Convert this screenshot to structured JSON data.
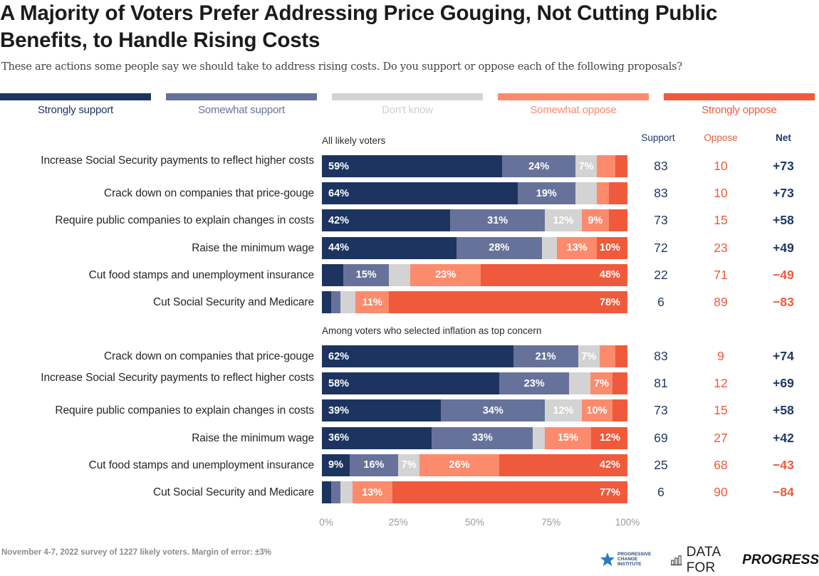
{
  "header": {
    "title_line1": "A Majority of Voters Prefer Addressing Price Gouging, Not Cutting Public",
    "title_line2": "Benefits, to Handle Rising Costs",
    "subtitle": "These are actions some people say we should take to address rising costs. Do you support or oppose each of the following proposals?"
  },
  "colors": {
    "strongly_support": "#1d3461",
    "somewhat_support": "#67729a",
    "dont_know": "#d3d3d3",
    "somewhat_oppose": "#fc8b6e",
    "strongly_oppose": "#ef5a3c",
    "support_text": "#1f3864",
    "oppose_text": "#ef5a3c",
    "dont_know_label": "#cfcfcf"
  },
  "chart_data": {
    "type": "bar",
    "orientation": "horizontal-stacked-100",
    "title": "A Majority of Voters Prefer Addressing Price Gouging, Not Cutting Public Benefits, to Handle Rising Costs",
    "subtitle": "These are actions some people say we should take to address rising costs. Do you support or oppose each of the following proposals?",
    "xlabel": "",
    "ylabel": "",
    "xlim": [
      0,
      100
    ],
    "x_ticks": [
      "0%",
      "25%",
      "50%",
      "75%",
      "100%"
    ],
    "legend": [
      "Strongly support",
      "Somewhat support",
      "Don't know",
      "Somewhat oppose",
      "Strongly oppose"
    ],
    "legend_position": "top",
    "columns": {
      "support": "Support",
      "oppose": "Oppose",
      "net": "Net"
    },
    "groups": [
      {
        "label": "All likely voters",
        "rows": [
          {
            "label": "Increase Social Security payments to reflect higher costs",
            "values": [
              59,
              24,
              7,
              6,
              4
            ],
            "labels": [
              "59%",
              "24%",
              "7%",
              "",
              ""
            ],
            "support": "83",
            "oppose": "10",
            "net": "+73",
            "net_positive": true
          },
          {
            "label": "Crack down on companies that price-gouge",
            "values": [
              64,
              19,
              7,
              4,
              6
            ],
            "labels": [
              "64%",
              "19%",
              "",
              "",
              ""
            ],
            "support": "83",
            "oppose": "10",
            "net": "+73",
            "net_positive": true
          },
          {
            "label": "Require public companies to explain changes in costs",
            "values": [
              42,
              31,
              12,
              9,
              6
            ],
            "labels": [
              "42%",
              "31%",
              "12%",
              "9%",
              ""
            ],
            "support": "73",
            "oppose": "15",
            "net": "+58",
            "net_positive": true
          },
          {
            "label": "Raise the minimum wage",
            "values": [
              44,
              28,
              5,
              13,
              10
            ],
            "labels": [
              "44%",
              "28%",
              "",
              "13%",
              "10%"
            ],
            "support": "72",
            "oppose": "23",
            "net": "+49",
            "net_positive": true
          },
          {
            "label": "Cut food stamps and unemployment insurance",
            "values": [
              7,
              15,
              7,
              23,
              48
            ],
            "labels": [
              "",
              "15%",
              "",
              "23%",
              "48%"
            ],
            "support": "22",
            "oppose": "71",
            "net": "−49",
            "net_positive": false
          },
          {
            "label": "Cut Social Security and Medicare",
            "values": [
              3,
              3,
              5,
              11,
              78
            ],
            "labels": [
              "",
              "",
              "",
              "11%",
              "78%"
            ],
            "support": "6",
            "oppose": "89",
            "net": "−83",
            "net_positive": false
          }
        ]
      },
      {
        "label": "Among voters who selected inflation as top concern",
        "rows": [
          {
            "label": "Crack down on companies that price-gouge",
            "values": [
              62,
              21,
              7,
              5,
              4
            ],
            "labels": [
              "62%",
              "21%",
              "7%",
              "",
              ""
            ],
            "support": "83",
            "oppose": "9",
            "net": "+74",
            "net_positive": true
          },
          {
            "label": "Increase Social Security payments to reflect higher costs",
            "values": [
              58,
              23,
              7,
              7,
              5
            ],
            "labels": [
              "58%",
              "23%",
              "",
              "7%",
              ""
            ],
            "support": "81",
            "oppose": "12",
            "net": "+69",
            "net_positive": true
          },
          {
            "label": "Require public companies to explain changes in costs",
            "values": [
              39,
              34,
              12,
              10,
              5
            ],
            "labels": [
              "39%",
              "34%",
              "12%",
              "10%",
              ""
            ],
            "support": "73",
            "oppose": "15",
            "net": "+58",
            "net_positive": true
          },
          {
            "label": "Raise the minimum wage",
            "values": [
              36,
              33,
              4,
              15,
              12
            ],
            "labels": [
              "36%",
              "33%",
              "",
              "15%",
              "12%"
            ],
            "support": "69",
            "oppose": "27",
            "net": "+42",
            "net_positive": true
          },
          {
            "label": "Cut food stamps and unemployment insurance",
            "values": [
              9,
              16,
              7,
              26,
              42
            ],
            "labels": [
              "9%",
              "16%",
              "7%",
              "26%",
              "42%"
            ],
            "support": "25",
            "oppose": "68",
            "net": "−43",
            "net_positive": false
          },
          {
            "label": "Cut Social Security and Medicare",
            "values": [
              3,
              3,
              4,
              13,
              77
            ],
            "labels": [
              "",
              "",
              "",
              "13%",
              "77%"
            ],
            "support": "6",
            "oppose": "90",
            "net": "−84",
            "net_positive": false
          }
        ]
      }
    ]
  },
  "footer": {
    "note": "November 4-7, 2022 survey of 1227 likely voters. Margin of error: ±3%",
    "pci_line1": "PROGRESSIVE",
    "pci_line2": "CHANGE",
    "pci_line3": "INSTITUTE",
    "pci_icon": "star-icon",
    "dfp_icon": "bar-chart-icon",
    "dfp_part1": "DATA FOR",
    "dfp_part2": "PROGRESS"
  }
}
